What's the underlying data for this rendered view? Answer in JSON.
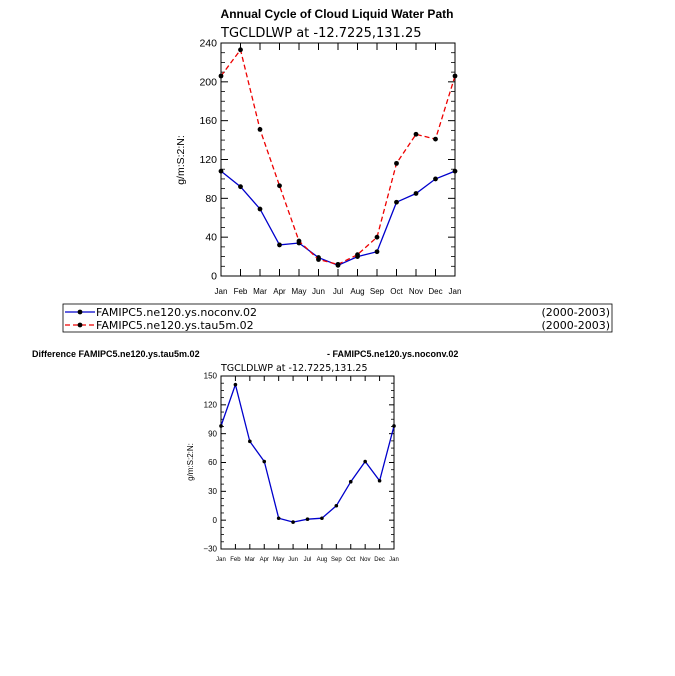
{
  "main_chart": {
    "title": "Annual Cycle of Cloud Liquid Water Path",
    "subtitle": "TGCLDLWP  at  -12.7225,131.25",
    "ylabel": "g/m:S:2:N:",
    "legend": [
      {
        "label": "FAMIPC5.ne120.ys.noconv.02",
        "period": "(2000-2003)",
        "color": "#0000cc"
      },
      {
        "label": "FAMIPC5.ne120.ys.tau5m.02",
        "period": "(2000-2003)",
        "color": "#ee0000"
      }
    ]
  },
  "diff_chart": {
    "label_left": "Difference FAMIPC5.ne120.ys.tau5m.02",
    "label_right": "- FAMIPC5.ne120.ys.noconv.02",
    "subtitle": "TGCLDLWP  at  -12.7225,131.25",
    "ylabel": "g/m:S:2:N:"
  },
  "chart_data": [
    {
      "type": "line",
      "title": "Annual Cycle of Cloud Liquid Water Path",
      "ylabel": "g/m:S:2:N:",
      "xlabel": "",
      "categories": [
        "Jan",
        "Feb",
        "Mar",
        "Apr",
        "May",
        "Jun",
        "Jul",
        "Aug",
        "Sep",
        "Oct",
        "Nov",
        "Dec",
        "Jan"
      ],
      "ylim": [
        0,
        240
      ],
      "yticks": [
        0,
        40,
        80,
        120,
        160,
        200,
        240
      ],
      "series": [
        {
          "name": "FAMIPC5.ne120.ys.noconv.02",
          "color": "#0000cc",
          "dash": "solid",
          "values": [
            108,
            92,
            69,
            32,
            34,
            19,
            11,
            20,
            25,
            76,
            85,
            100,
            108
          ]
        },
        {
          "name": "FAMIPC5.ne120.ys.tau5m.02",
          "color": "#ee0000",
          "dash": "dashed",
          "values": [
            206,
            233,
            151,
            93,
            36,
            17,
            12,
            22,
            40,
            116,
            146,
            141,
            206
          ]
        }
      ]
    },
    {
      "type": "line",
      "title": "Difference FAMIPC5.ne120.ys.tau5m.02 - FAMIPC5.ne120.ys.noconv.02",
      "ylabel": "g/m:S:2:N:",
      "xlabel": "",
      "categories": [
        "Jan",
        "Feb",
        "Mar",
        "Apr",
        "May",
        "Jun",
        "Jul",
        "Aug",
        "Sep",
        "Oct",
        "Nov",
        "Dec",
        "Jan"
      ],
      "ylim": [
        -30,
        150
      ],
      "yticks": [
        -30,
        0,
        30,
        60,
        90,
        120,
        150
      ],
      "series": [
        {
          "name": "difference",
          "color": "#0000cc",
          "dash": "solid",
          "values": [
            98,
            141,
            82,
            61,
            2,
            -2,
            1,
            2,
            15,
            40,
            61,
            41,
            98
          ]
        }
      ]
    }
  ]
}
